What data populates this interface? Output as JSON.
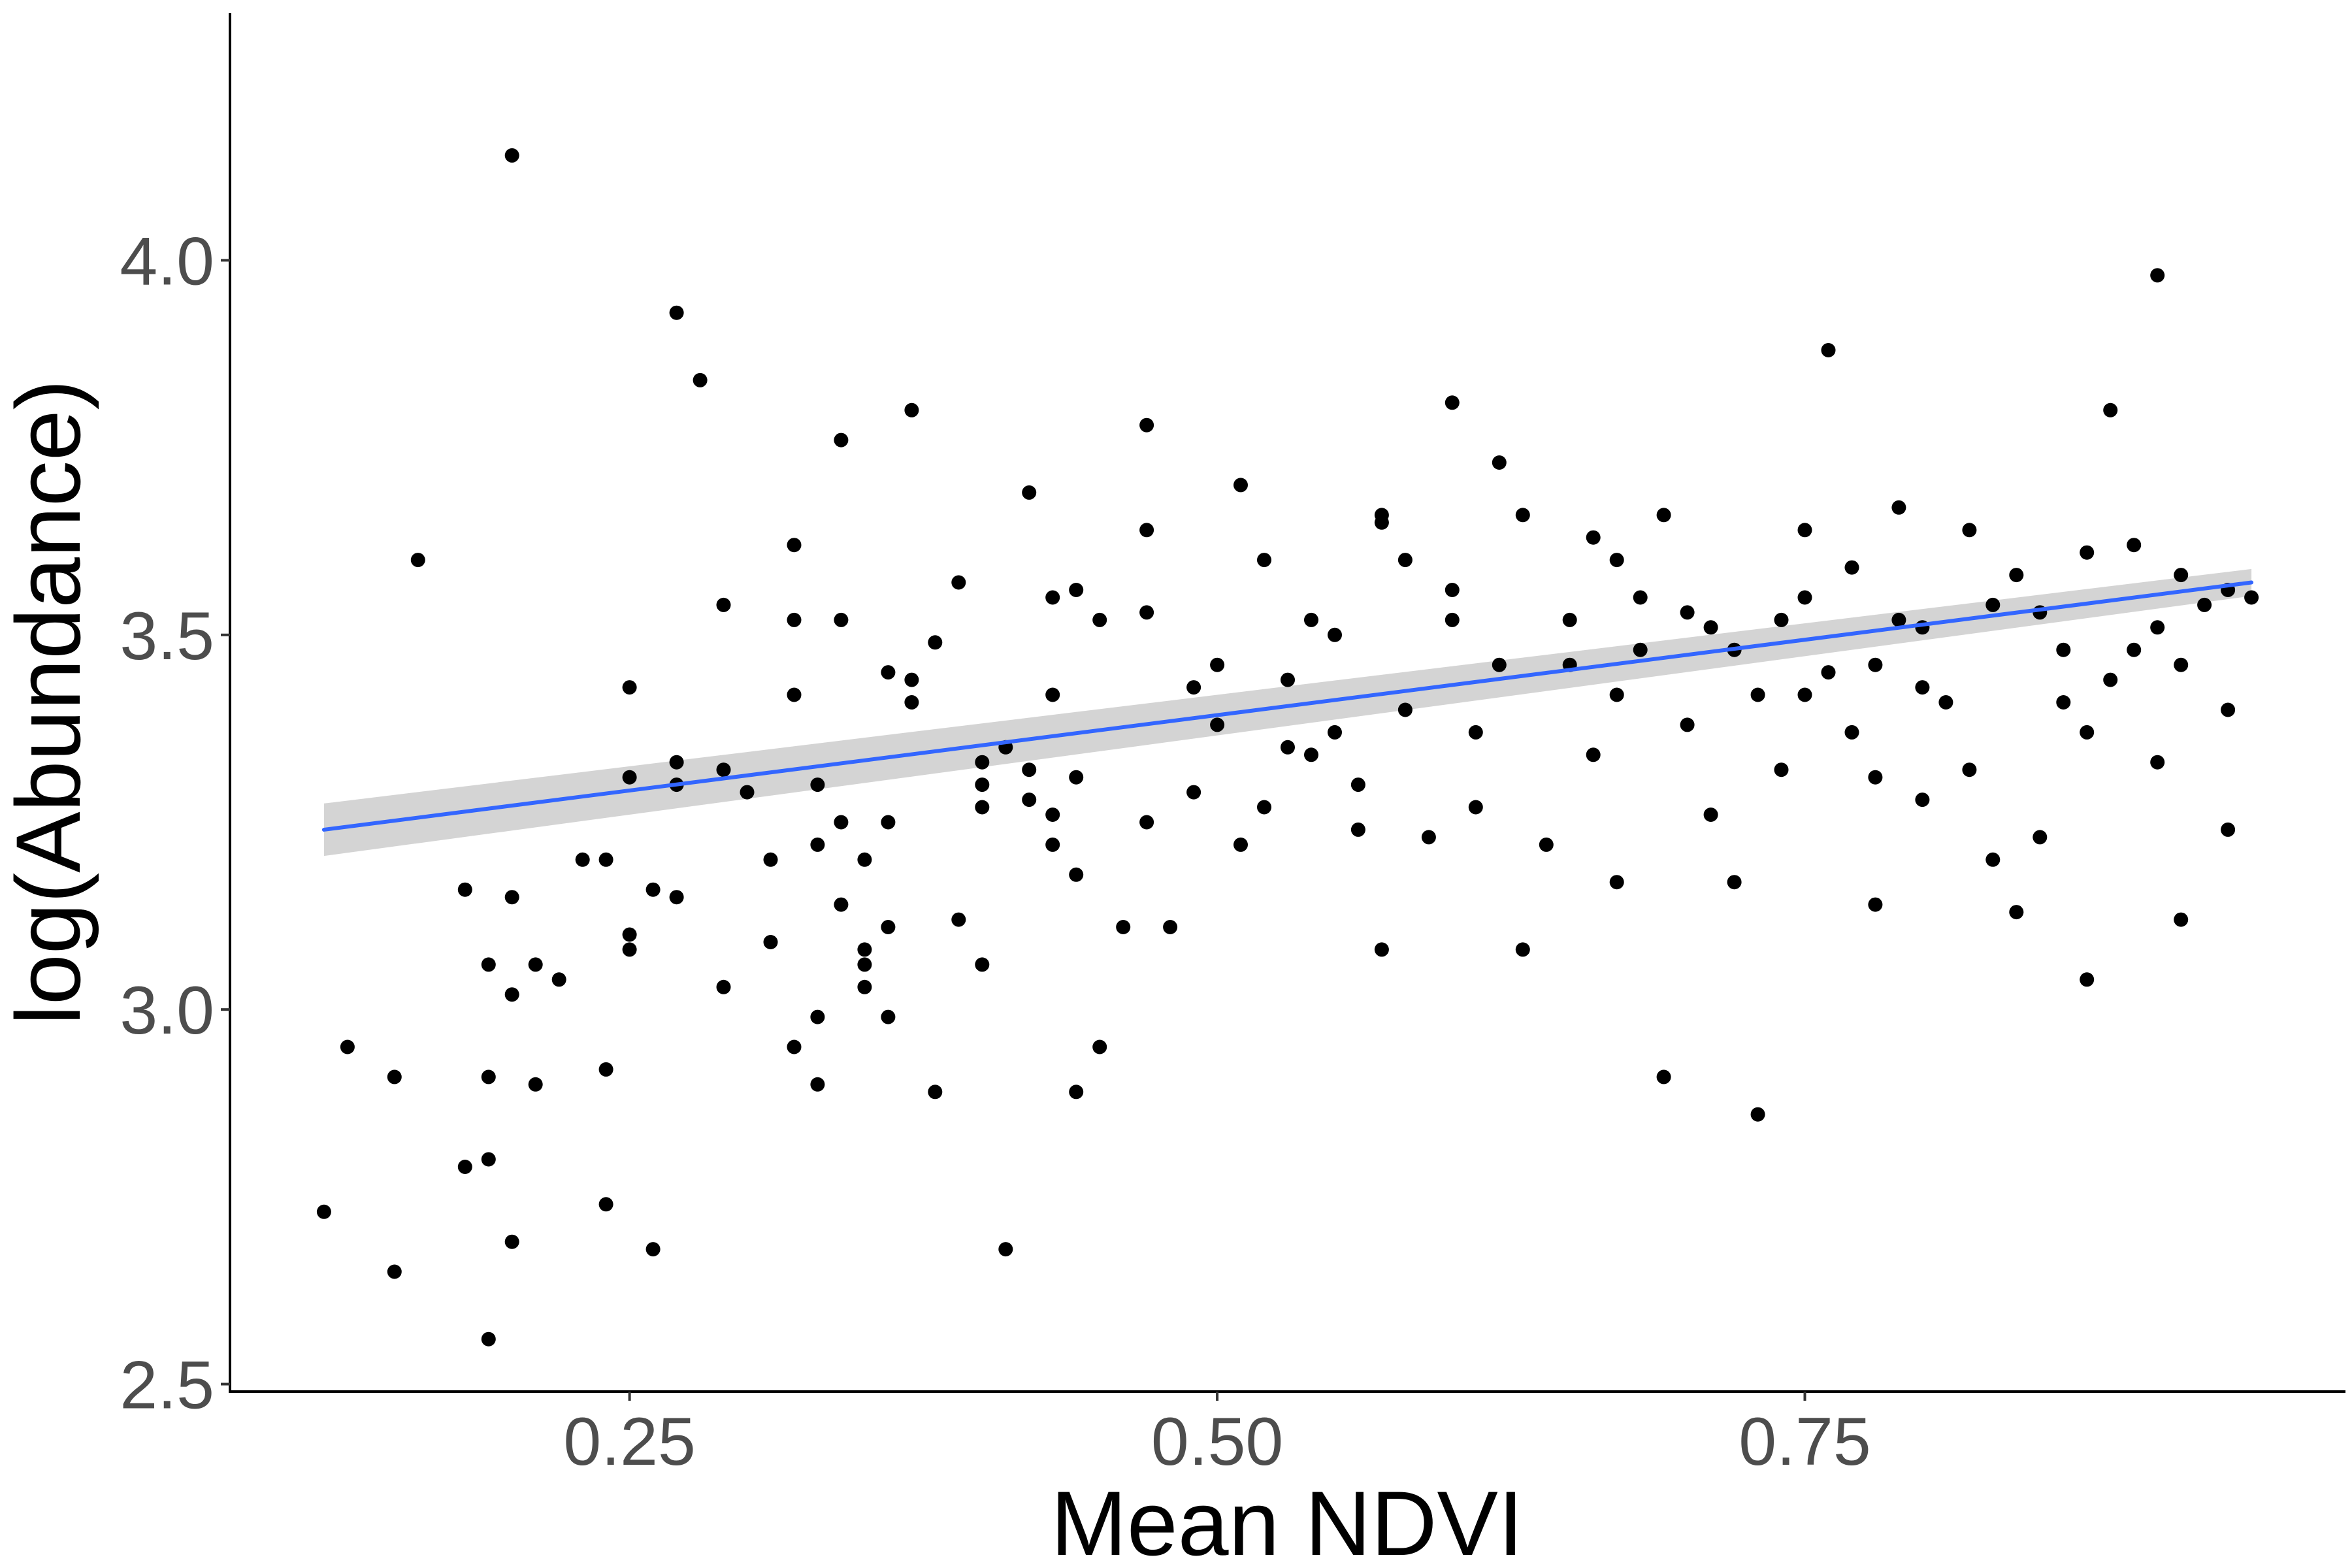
{
  "chart_data": {
    "type": "scatter",
    "xlabel": "Mean NDVI",
    "ylabel": "log(Abundance)",
    "xlim": [
      0.08,
      0.98
    ],
    "ylim": [
      2.49,
      4.33
    ],
    "x_ticks": [
      "0.25",
      "0.50",
      "0.75"
    ],
    "x_tick_values": [
      0.25,
      0.5,
      0.75
    ],
    "y_ticks": [
      "2.5",
      "3.0",
      "3.5",
      "4.0"
    ],
    "y_tick_values": [
      2.5,
      3.0,
      3.5,
      4.0
    ],
    "grid": false,
    "legend": "none",
    "trend_line": {
      "method": "linear fit",
      "x_start": 0.12,
      "y_start": 3.24,
      "x_end": 0.94,
      "y_end": 3.57,
      "ci_halfwidth_start": 0.035,
      "ci_halfwidth_end": 0.018,
      "color": "#3366ff",
      "band_color": "#cccccc"
    },
    "point_color": "#000000",
    "points_shown": [
      [
        0.12,
        2.73
      ],
      [
        0.13,
        2.95
      ],
      [
        0.15,
        2.91
      ],
      [
        0.15,
        2.65
      ],
      [
        0.16,
        3.6
      ],
      [
        0.18,
        2.79
      ],
      [
        0.18,
        3.16
      ],
      [
        0.19,
        3.06
      ],
      [
        0.19,
        2.56
      ],
      [
        0.19,
        2.8
      ],
      [
        0.19,
        2.91
      ],
      [
        0.2,
        4.14
      ],
      [
        0.2,
        3.02
      ],
      [
        0.2,
        3.15
      ],
      [
        0.2,
        2.69
      ],
      [
        0.21,
        3.06
      ],
      [
        0.21,
        2.9
      ],
      [
        0.22,
        3.04
      ],
      [
        0.23,
        3.2
      ],
      [
        0.24,
        3.2
      ],
      [
        0.24,
        2.92
      ],
      [
        0.24,
        2.74
      ],
      [
        0.25,
        3.31
      ],
      [
        0.25,
        3.43
      ],
      [
        0.25,
        3.08
      ],
      [
        0.25,
        3.1
      ],
      [
        0.26,
        3.16
      ],
      [
        0.26,
        2.68
      ],
      [
        0.27,
        3.15
      ],
      [
        0.27,
        3.93
      ],
      [
        0.27,
        3.3
      ],
      [
        0.27,
        3.33
      ],
      [
        0.28,
        3.84
      ],
      [
        0.29,
        3.03
      ],
      [
        0.29,
        3.54
      ],
      [
        0.29,
        3.32
      ],
      [
        0.3,
        3.29
      ],
      [
        0.31,
        3.2
      ],
      [
        0.31,
        3.09
      ],
      [
        0.32,
        2.95
      ],
      [
        0.32,
        3.62
      ],
      [
        0.32,
        3.42
      ],
      [
        0.32,
        3.52
      ],
      [
        0.33,
        3.3
      ],
      [
        0.33,
        2.99
      ],
      [
        0.33,
        3.22
      ],
      [
        0.33,
        2.9
      ],
      [
        0.34,
        3.76
      ],
      [
        0.34,
        3.52
      ],
      [
        0.34,
        3.25
      ],
      [
        0.34,
        3.14
      ],
      [
        0.35,
        3.2
      ],
      [
        0.35,
        3.08
      ],
      [
        0.35,
        3.06
      ],
      [
        0.35,
        3.03
      ],
      [
        0.36,
        3.45
      ],
      [
        0.36,
        3.25
      ],
      [
        0.36,
        3.11
      ],
      [
        0.36,
        2.99
      ],
      [
        0.37,
        3.8
      ],
      [
        0.37,
        3.44
      ],
      [
        0.37,
        3.41
      ],
      [
        0.38,
        3.49
      ],
      [
        0.38,
        2.89
      ],
      [
        0.39,
        3.12
      ],
      [
        0.39,
        3.57
      ],
      [
        0.4,
        3.33
      ],
      [
        0.4,
        3.3
      ],
      [
        0.4,
        3.27
      ],
      [
        0.4,
        3.06
      ],
      [
        0.41,
        3.35
      ],
      [
        0.41,
        2.68
      ],
      [
        0.42,
        3.69
      ],
      [
        0.42,
        3.32
      ],
      [
        0.42,
        3.28
      ],
      [
        0.43,
        3.55
      ],
      [
        0.43,
        3.22
      ],
      [
        0.43,
        3.42
      ],
      [
        0.43,
        3.26
      ],
      [
        0.44,
        3.56
      ],
      [
        0.44,
        3.31
      ],
      [
        0.44,
        3.18
      ],
      [
        0.44,
        2.89
      ],
      [
        0.45,
        3.52
      ],
      [
        0.45,
        2.95
      ],
      [
        0.46,
        3.11
      ],
      [
        0.47,
        3.78
      ],
      [
        0.47,
        3.64
      ],
      [
        0.47,
        3.53
      ],
      [
        0.47,
        3.25
      ],
      [
        0.48,
        3.11
      ],
      [
        0.49,
        3.43
      ],
      [
        0.49,
        3.29
      ],
      [
        0.5,
        3.38
      ],
      [
        0.5,
        3.46
      ],
      [
        0.51,
        3.7
      ],
      [
        0.51,
        3.22
      ],
      [
        0.52,
        3.6
      ],
      [
        0.52,
        3.27
      ],
      [
        0.53,
        3.44
      ],
      [
        0.53,
        3.35
      ],
      [
        0.54,
        3.52
      ],
      [
        0.54,
        3.34
      ],
      [
        0.55,
        3.37
      ],
      [
        0.55,
        3.5
      ],
      [
        0.56,
        3.24
      ],
      [
        0.56,
        3.3
      ],
      [
        0.57,
        3.66
      ],
      [
        0.57,
        3.65
      ],
      [
        0.57,
        3.08
      ],
      [
        0.58,
        3.6
      ],
      [
        0.58,
        3.4
      ],
      [
        0.59,
        3.23
      ],
      [
        0.6,
        3.81
      ],
      [
        0.6,
        3.56
      ],
      [
        0.6,
        3.52
      ],
      [
        0.61,
        3.37
      ],
      [
        0.61,
        3.27
      ],
      [
        0.62,
        3.73
      ],
      [
        0.62,
        3.46
      ],
      [
        0.63,
        3.08
      ],
      [
        0.63,
        3.66
      ],
      [
        0.64,
        3.22
      ],
      [
        0.65,
        3.52
      ],
      [
        0.65,
        3.46
      ],
      [
        0.66,
        3.63
      ],
      [
        0.66,
        3.34
      ],
      [
        0.67,
        3.6
      ],
      [
        0.67,
        3.17
      ],
      [
        0.67,
        3.42
      ],
      [
        0.68,
        3.55
      ],
      [
        0.68,
        3.48
      ],
      [
        0.69,
        3.66
      ],
      [
        0.69,
        2.91
      ],
      [
        0.7,
        3.38
      ],
      [
        0.7,
        3.53
      ],
      [
        0.71,
        3.51
      ],
      [
        0.71,
        3.26
      ],
      [
        0.72,
        3.17
      ],
      [
        0.72,
        3.48
      ],
      [
        0.73,
        3.42
      ],
      [
        0.73,
        2.86
      ],
      [
        0.74,
        3.52
      ],
      [
        0.74,
        3.32
      ],
      [
        0.75,
        3.64
      ],
      [
        0.75,
        3.42
      ],
      [
        0.75,
        3.55
      ],
      [
        0.76,
        3.45
      ],
      [
        0.76,
        3.88
      ],
      [
        0.77,
        3.59
      ],
      [
        0.77,
        3.37
      ],
      [
        0.78,
        3.46
      ],
      [
        0.78,
        3.14
      ],
      [
        0.78,
        3.31
      ],
      [
        0.79,
        3.67
      ],
      [
        0.79,
        3.52
      ],
      [
        0.8,
        3.51
      ],
      [
        0.8,
        3.28
      ],
      [
        0.8,
        3.43
      ],
      [
        0.81,
        3.41
      ],
      [
        0.82,
        3.64
      ],
      [
        0.82,
        3.32
      ],
      [
        0.83,
        3.54
      ],
      [
        0.83,
        3.2
      ],
      [
        0.84,
        3.58
      ],
      [
        0.84,
        3.13
      ],
      [
        0.85,
        3.53
      ],
      [
        0.85,
        3.23
      ],
      [
        0.86,
        3.48
      ],
      [
        0.86,
        3.41
      ],
      [
        0.87,
        3.37
      ],
      [
        0.87,
        3.61
      ],
      [
        0.87,
        3.04
      ],
      [
        0.88,
        3.44
      ],
      [
        0.88,
        3.8
      ],
      [
        0.89,
        3.62
      ],
      [
        0.89,
        3.48
      ],
      [
        0.9,
        3.33
      ],
      [
        0.9,
        3.51
      ],
      [
        0.9,
        3.98
      ],
      [
        0.91,
        3.12
      ],
      [
        0.91,
        3.58
      ],
      [
        0.91,
        3.46
      ],
      [
        0.92,
        3.54
      ],
      [
        0.93,
        3.24
      ],
      [
        0.93,
        3.56
      ],
      [
        0.93,
        3.4
      ],
      [
        0.94,
        3.55
      ]
    ]
  }
}
